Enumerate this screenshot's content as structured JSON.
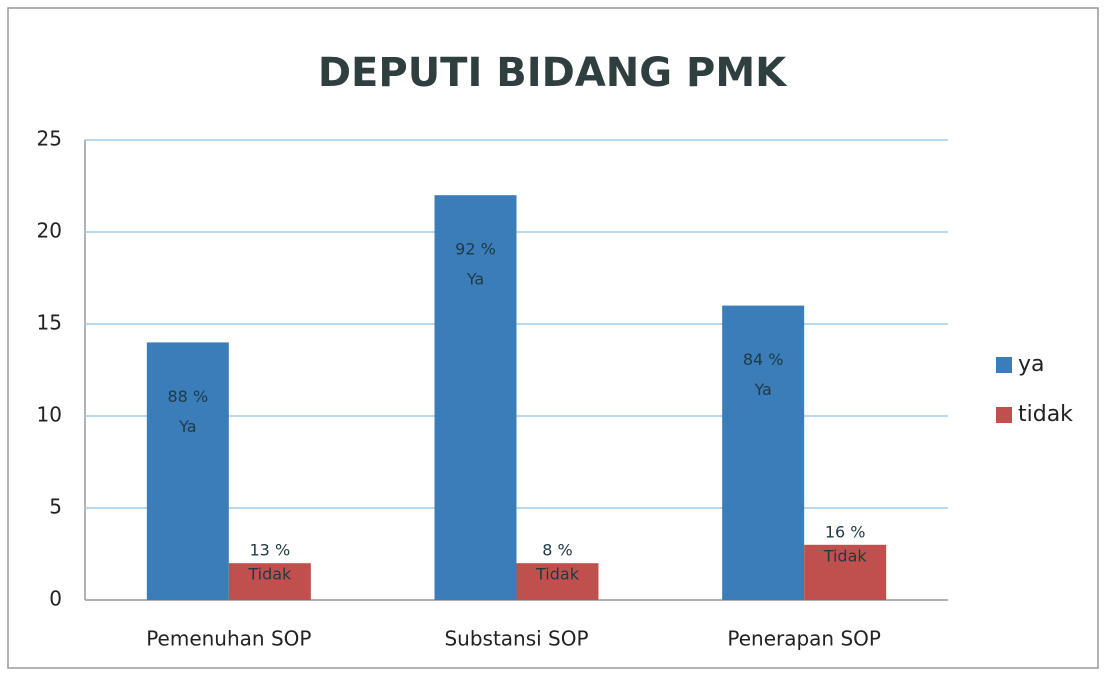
{
  "chart_data": {
    "type": "bar",
    "title": "DEPUTI BIDANG PMK",
    "categories": [
      "Pemenuhan SOP",
      "Substansi SOP",
      "Penerapan SOP"
    ],
    "series": [
      {
        "name": "ya",
        "color": "#3b7db8",
        "values": [
          14,
          22,
          16
        ],
        "annotations": [
          [
            "88 %",
            "Ya"
          ],
          [
            "92 %",
            "Ya"
          ],
          [
            "84 %",
            "Ya"
          ]
        ]
      },
      {
        "name": "tidak",
        "color": "#c0504d",
        "values": [
          2,
          2,
          3
        ],
        "annotations": [
          [
            "13 %",
            "Tidak"
          ],
          [
            "8 %",
            "Tidak"
          ],
          [
            "16 %",
            "Tidak"
          ]
        ]
      }
    ],
    "ylim": [
      0,
      25
    ],
    "yticks": [
      0,
      5,
      10,
      15,
      20,
      25
    ],
    "grid": true,
    "legend": "right"
  }
}
